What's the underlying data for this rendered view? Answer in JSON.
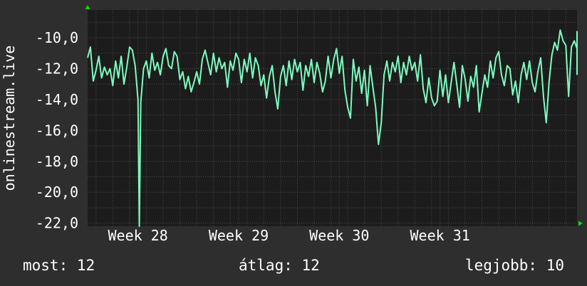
{
  "chart_data": {
    "type": "line",
    "ylabel": "onlinestream.live",
    "ylim": [
      -22.2,
      -8.2
    ],
    "yticks": [
      "-10,0",
      "-12,0",
      "-14,0",
      "-16,0",
      "-18,0",
      "-20,0",
      "-22,0"
    ],
    "ytick_values": [
      -10,
      -12,
      -14,
      -16,
      -18,
      -20,
      -22
    ],
    "xlim": [
      0,
      35
    ],
    "xticks": [
      "Week 28",
      "Week 29",
      "Week 30",
      "Week 31"
    ],
    "xtick_values": [
      3.6,
      10.8,
      18.0,
      25.2
    ],
    "grid": true,
    "colors": {
      "background": "#2e2e2e",
      "plot": "#1c1c1c",
      "line": "#7dfcc0",
      "grid": "#4a4a4a",
      "arrow": "#00e000"
    },
    "series": [
      {
        "points": [
          [
            0.0,
            -11.3
          ],
          [
            0.2,
            -10.6
          ],
          [
            0.4,
            -12.8
          ],
          [
            0.6,
            -12.1
          ],
          [
            0.8,
            -11.2
          ],
          [
            1.0,
            -12.6
          ],
          [
            1.2,
            -11.9
          ],
          [
            1.4,
            -12.4
          ],
          [
            1.6,
            -12.0
          ],
          [
            1.8,
            -13.1
          ],
          [
            2.0,
            -11.5
          ],
          [
            2.2,
            -12.6
          ],
          [
            2.4,
            -11.2
          ],
          [
            2.6,
            -13.0
          ],
          [
            2.8,
            -11.9
          ],
          [
            3.0,
            -10.6
          ],
          [
            3.2,
            -10.8
          ],
          [
            3.4,
            -11.8
          ],
          [
            3.6,
            -14.0
          ],
          [
            3.7,
            -22.4
          ],
          [
            3.8,
            -14.2
          ],
          [
            4.0,
            -12.0
          ],
          [
            4.2,
            -11.5
          ],
          [
            4.4,
            -12.6
          ],
          [
            4.6,
            -11.0
          ],
          [
            4.8,
            -12.1
          ],
          [
            5.0,
            -11.6
          ],
          [
            5.2,
            -12.4
          ],
          [
            5.4,
            -11.2
          ],
          [
            5.6,
            -10.7
          ],
          [
            5.8,
            -11.8
          ],
          [
            6.0,
            -12.0
          ],
          [
            6.2,
            -10.9
          ],
          [
            6.4,
            -11.2
          ],
          [
            6.6,
            -12.7
          ],
          [
            6.8,
            -12.2
          ],
          [
            7.0,
            -13.3
          ],
          [
            7.2,
            -12.5
          ],
          [
            7.4,
            -13.5
          ],
          [
            7.6,
            -12.9
          ],
          [
            7.8,
            -12.2
          ],
          [
            8.0,
            -13.0
          ],
          [
            8.2,
            -11.4
          ],
          [
            8.4,
            -10.8
          ],
          [
            8.6,
            -11.6
          ],
          [
            8.8,
            -12.4
          ],
          [
            9.0,
            -11.0
          ],
          [
            9.2,
            -12.2
          ],
          [
            9.4,
            -11.3
          ],
          [
            9.6,
            -12.0
          ],
          [
            9.8,
            -11.6
          ],
          [
            10.0,
            -13.2
          ],
          [
            10.2,
            -11.5
          ],
          [
            10.4,
            -12.1
          ],
          [
            10.6,
            -11.0
          ],
          [
            10.8,
            -11.4
          ],
          [
            11.0,
            -12.9
          ],
          [
            11.2,
            -11.4
          ],
          [
            11.4,
            -12.2
          ],
          [
            11.6,
            -11.0
          ],
          [
            11.8,
            -12.6
          ],
          [
            12.0,
            -11.3
          ],
          [
            12.2,
            -11.8
          ],
          [
            12.4,
            -13.1
          ],
          [
            12.6,
            -12.4
          ],
          [
            12.8,
            -13.9
          ],
          [
            13.0,
            -12.5
          ],
          [
            13.2,
            -11.8
          ],
          [
            13.4,
            -13.5
          ],
          [
            13.6,
            -14.6
          ],
          [
            13.8,
            -12.5
          ],
          [
            14.0,
            -11.8
          ],
          [
            14.2,
            -13.1
          ],
          [
            14.4,
            -11.5
          ],
          [
            14.6,
            -12.7
          ],
          [
            14.8,
            -11.4
          ],
          [
            15.0,
            -12.2
          ],
          [
            15.2,
            -11.6
          ],
          [
            15.4,
            -13.4
          ],
          [
            15.6,
            -11.8
          ],
          [
            15.8,
            -12.5
          ],
          [
            16.0,
            -11.4
          ],
          [
            16.2,
            -12.9
          ],
          [
            16.4,
            -11.6
          ],
          [
            16.6,
            -12.3
          ],
          [
            16.8,
            -13.5
          ],
          [
            17.0,
            -12.8
          ],
          [
            17.2,
            -11.2
          ],
          [
            17.4,
            -12.6
          ],
          [
            17.6,
            -11.4
          ],
          [
            17.8,
            -10.7
          ],
          [
            18.0,
            -12.3
          ],
          [
            18.2,
            -11.2
          ],
          [
            18.4,
            -13.4
          ],
          [
            18.6,
            -14.5
          ],
          [
            18.8,
            -15.2
          ],
          [
            19.0,
            -11.4
          ],
          [
            19.2,
            -12.8
          ],
          [
            19.4,
            -11.9
          ],
          [
            19.6,
            -13.6
          ],
          [
            19.8,
            -12.1
          ],
          [
            20.0,
            -14.4
          ],
          [
            20.2,
            -11.8
          ],
          [
            20.4,
            -13.2
          ],
          [
            20.6,
            -14.5
          ],
          [
            20.8,
            -16.9
          ],
          [
            21.0,
            -15.5
          ],
          [
            21.2,
            -12.4
          ],
          [
            21.4,
            -11.5
          ],
          [
            21.6,
            -12.8
          ],
          [
            21.8,
            -11.6
          ],
          [
            22.0,
            -12.2
          ],
          [
            22.2,
            -11.2
          ],
          [
            22.4,
            -12.9
          ],
          [
            22.6,
            -11.6
          ],
          [
            22.8,
            -12.4
          ],
          [
            23.0,
            -11.2
          ],
          [
            23.2,
            -12.1
          ],
          [
            23.4,
            -11.6
          ],
          [
            23.6,
            -12.8
          ],
          [
            23.8,
            -11.1
          ],
          [
            24.0,
            -13.3
          ],
          [
            24.2,
            -14.2
          ],
          [
            24.4,
            -12.6
          ],
          [
            24.6,
            -13.9
          ],
          [
            24.8,
            -14.4
          ],
          [
            25.0,
            -14.1
          ],
          [
            25.2,
            -12.1
          ],
          [
            25.4,
            -13.8
          ],
          [
            25.6,
            -12.4
          ],
          [
            25.8,
            -14.2
          ],
          [
            26.0,
            -12.9
          ],
          [
            26.2,
            -11.6
          ],
          [
            26.4,
            -13.0
          ],
          [
            26.6,
            -14.5
          ],
          [
            26.8,
            -11.8
          ],
          [
            27.0,
            -12.7
          ],
          [
            27.2,
            -14.1
          ],
          [
            27.4,
            -12.5
          ],
          [
            27.6,
            -13.2
          ],
          [
            27.8,
            -11.8
          ],
          [
            28.0,
            -14.8
          ],
          [
            28.2,
            -13.6
          ],
          [
            28.4,
            -12.4
          ],
          [
            28.6,
            -13.2
          ],
          [
            28.8,
            -11.5
          ],
          [
            29.0,
            -12.6
          ],
          [
            29.2,
            -11.3
          ],
          [
            29.4,
            -10.9
          ],
          [
            29.6,
            -12.4
          ],
          [
            29.8,
            -13.1
          ],
          [
            30.0,
            -11.8
          ],
          [
            30.2,
            -12.0
          ],
          [
            30.4,
            -13.7
          ],
          [
            30.6,
            -12.8
          ],
          [
            30.8,
            -14.2
          ],
          [
            31.0,
            -12.4
          ],
          [
            31.2,
            -11.6
          ],
          [
            31.4,
            -12.7
          ],
          [
            31.6,
            -11.5
          ],
          [
            31.8,
            -12.9
          ],
          [
            32.0,
            -13.5
          ],
          [
            32.2,
            -12.2
          ],
          [
            32.4,
            -11.3
          ],
          [
            32.6,
            -13.8
          ],
          [
            32.8,
            -15.5
          ],
          [
            33.0,
            -12.9
          ],
          [
            33.2,
            -11.1
          ],
          [
            33.4,
            -10.3
          ],
          [
            33.6,
            -10.8
          ],
          [
            33.8,
            -9.5
          ],
          [
            34.0,
            -10.2
          ],
          [
            34.2,
            -10.5
          ],
          [
            34.4,
            -13.8
          ],
          [
            34.6,
            -10.6
          ],
          [
            34.8,
            -10.2
          ],
          [
            35.0,
            -10.7
          ],
          [
            35.2,
            -11.0
          ],
          [
            35.4,
            -9.6
          ],
          [
            35.6,
            -11.4
          ],
          [
            35.8,
            -12.4
          ]
        ]
      }
    ]
  },
  "stats": {
    "now": "most: 12",
    "avg": "átlag: 12",
    "best": "legjobb: 10"
  }
}
